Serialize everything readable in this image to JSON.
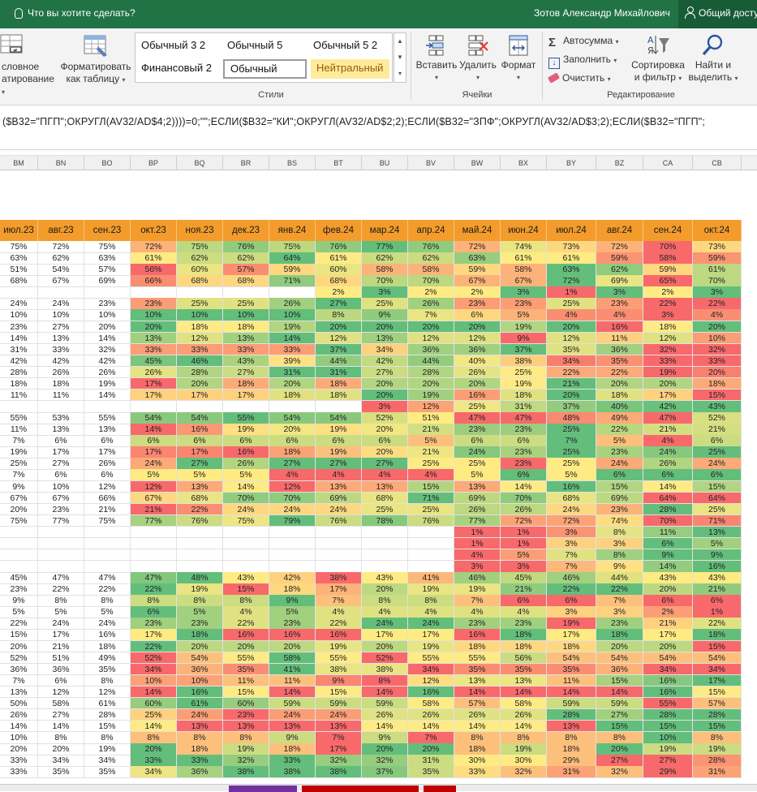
{
  "titlebar": {
    "tell_me": "Что вы хотите сделать?",
    "user_name": "Зотов Александр Михайлович",
    "share_label": "Общий доступ"
  },
  "ribbon": {
    "conditional_formatting": {
      "line1": "словное",
      "line2": "атирование"
    },
    "format_as_table": {
      "line1": "Форматировать",
      "line2": "как таблицу"
    },
    "cell_styles": [
      "Обычный 3 2",
      "Обычный 5",
      "Обычный 5 2",
      "Финансовый 2",
      "Обычный",
      "Нейтральный"
    ],
    "styles_group": "Стили",
    "insert_label": "Вставить",
    "delete_label": "Удалить",
    "format_label": "Формат",
    "cells_group": "Ячейки",
    "autosum_label": "Автосумма",
    "fill_label": "Заполнить",
    "clear_label": "Очистить",
    "sort_filter": {
      "line1": "Сортировка",
      "line2": "и фильтр"
    },
    "find_select": {
      "line1": "Найти и",
      "line2": "выделить"
    },
    "editing_group": "Редактирование",
    "colors": {
      "neutral_bg": "#ffeb9c",
      "neutral_fg": "#9c5700",
      "accent": "#217346"
    }
  },
  "formula_bar": {
    "text": "($B32=\"ПГП\";ОКРУГЛ(AV32/AD$4;2))))=0;\"\";ЕСЛИ($B32=\"КИ\";ОКРУГЛ(AV32/AD$2;2);ЕСЛИ($B32=\"ЗПФ\";ОКРУГЛ(AV32/AD$3;2);ЕСЛИ($B32=\"ПГП\";"
  },
  "columns": [
    "BM",
    "BN",
    "BO",
    "BP",
    "BQ",
    "BR",
    "BS",
    "BT",
    "BU",
    "BV",
    "BW",
    "BX",
    "BY",
    "BZ",
    "CA",
    "CB"
  ],
  "months": [
    "июл.23",
    "авг.23",
    "сен.23",
    "окт.23",
    "ноя.23",
    "дек.23",
    "янв.24",
    "фев.24",
    "мар.24",
    "апр.24",
    "май.24",
    "июн.24",
    "июл.24",
    "авг.24",
    "сен.24",
    "окт.24"
  ],
  "color_scale": {
    "low": "#f8696b",
    "mid": "#ffeb84",
    "high": "#63be7b"
  },
  "header_color": "#f39c2c",
  "rows": [
    [
      "75%",
      "72%",
      "75%",
      "72%",
      "75%",
      "76%",
      "75%",
      "76%",
      "77%",
      "76%",
      "72%",
      "74%",
      "73%",
      "72%",
      "70%",
      "73%"
    ],
    [
      "63%",
      "62%",
      "63%",
      "61%",
      "62%",
      "62%",
      "64%",
      "61%",
      "62%",
      "62%",
      "63%",
      "61%",
      "61%",
      "59%",
      "58%",
      "59%"
    ],
    [
      "51%",
      "54%",
      "57%",
      "56%",
      "60%",
      "57%",
      "59%",
      "60%",
      "58%",
      "58%",
      "59%",
      "58%",
      "63%",
      "62%",
      "59%",
      "61%"
    ],
    [
      "68%",
      "67%",
      "69%",
      "66%",
      "68%",
      "68%",
      "71%",
      "68%",
      "70%",
      "70%",
      "67%",
      "67%",
      "72%",
      "69%",
      "65%",
      "70%"
    ],
    [
      "",
      "",
      "",
      "",
      "",
      "",
      "",
      "2%",
      "3%",
      "2%",
      "2%",
      "3%",
      "1%",
      "3%",
      "2%",
      "3%"
    ],
    [
      "24%",
      "24%",
      "23%",
      "23%",
      "25%",
      "25%",
      "26%",
      "27%",
      "25%",
      "26%",
      "23%",
      "23%",
      "25%",
      "23%",
      "22%",
      "22%"
    ],
    [
      "10%",
      "10%",
      "10%",
      "10%",
      "10%",
      "10%",
      "10%",
      "8%",
      "9%",
      "7%",
      "6%",
      "5%",
      "4%",
      "4%",
      "3%",
      "4%"
    ],
    [
      "23%",
      "27%",
      "20%",
      "20%",
      "18%",
      "18%",
      "19%",
      "20%",
      "20%",
      "20%",
      "20%",
      "19%",
      "20%",
      "16%",
      "18%",
      "20%"
    ],
    [
      "14%",
      "13%",
      "14%",
      "13%",
      "12%",
      "13%",
      "14%",
      "12%",
      "13%",
      "12%",
      "12%",
      "9%",
      "12%",
      "11%",
      "12%",
      "10%"
    ],
    [
      "31%",
      "33%",
      "32%",
      "33%",
      "33%",
      "33%",
      "33%",
      "37%",
      "34%",
      "36%",
      "36%",
      "37%",
      "35%",
      "36%",
      "32%",
      "32%"
    ],
    [
      "42%",
      "42%",
      "42%",
      "45%",
      "46%",
      "43%",
      "39%",
      "44%",
      "42%",
      "44%",
      "40%",
      "38%",
      "34%",
      "35%",
      "33%",
      "33%"
    ],
    [
      "28%",
      "26%",
      "26%",
      "26%",
      "28%",
      "27%",
      "31%",
      "31%",
      "27%",
      "28%",
      "26%",
      "25%",
      "22%",
      "22%",
      "19%",
      "20%"
    ],
    [
      "18%",
      "18%",
      "19%",
      "17%",
      "20%",
      "18%",
      "20%",
      "18%",
      "20%",
      "20%",
      "20%",
      "19%",
      "21%",
      "20%",
      "20%",
      "18%"
    ],
    [
      "11%",
      "11%",
      "14%",
      "17%",
      "17%",
      "17%",
      "18%",
      "18%",
      "20%",
      "19%",
      "16%",
      "18%",
      "20%",
      "18%",
      "17%",
      "15%"
    ],
    [
      "",
      "",
      "",
      "",
      "",
      "",
      "",
      "",
      "3%",
      "12%",
      "25%",
      "31%",
      "37%",
      "40%",
      "42%",
      "43%"
    ],
    [
      "55%",
      "53%",
      "55%",
      "54%",
      "54%",
      "55%",
      "54%",
      "54%",
      "52%",
      "51%",
      "47%",
      "47%",
      "48%",
      "49%",
      "47%",
      "52%"
    ],
    [
      "11%",
      "13%",
      "13%",
      "14%",
      "16%",
      "19%",
      "20%",
      "19%",
      "20%",
      "21%",
      "23%",
      "23%",
      "25%",
      "22%",
      "21%",
      "21%"
    ],
    [
      "7%",
      "6%",
      "6%",
      "6%",
      "6%",
      "6%",
      "6%",
      "6%",
      "6%",
      "5%",
      "6%",
      "6%",
      "7%",
      "5%",
      "4%",
      "6%"
    ],
    [
      "19%",
      "17%",
      "17%",
      "17%",
      "17%",
      "16%",
      "18%",
      "19%",
      "20%",
      "21%",
      "24%",
      "23%",
      "25%",
      "23%",
      "24%",
      "25%"
    ],
    [
      "25%",
      "27%",
      "26%",
      "24%",
      "27%",
      "26%",
      "27%",
      "27%",
      "27%",
      "25%",
      "25%",
      "23%",
      "25%",
      "24%",
      "26%",
      "24%"
    ],
    [
      "7%",
      "6%",
      "6%",
      "5%",
      "5%",
      "5%",
      "4%",
      "4%",
      "4%",
      "4%",
      "5%",
      "6%",
      "5%",
      "6%",
      "6%",
      "6%"
    ],
    [
      "9%",
      "10%",
      "12%",
      "12%",
      "13%",
      "14%",
      "12%",
      "13%",
      "13%",
      "15%",
      "13%",
      "14%",
      "16%",
      "15%",
      "14%",
      "15%"
    ],
    [
      "67%",
      "67%",
      "66%",
      "67%",
      "68%",
      "70%",
      "70%",
      "69%",
      "68%",
      "71%",
      "69%",
      "70%",
      "68%",
      "69%",
      "64%",
      "64%"
    ],
    [
      "20%",
      "23%",
      "21%",
      "21%",
      "22%",
      "24%",
      "24%",
      "24%",
      "25%",
      "25%",
      "26%",
      "26%",
      "24%",
      "23%",
      "28%",
      "25%"
    ],
    [
      "75%",
      "77%",
      "75%",
      "77%",
      "76%",
      "75%",
      "79%",
      "76%",
      "78%",
      "76%",
      "77%",
      "72%",
      "72%",
      "74%",
      "70%",
      "71%"
    ],
    [
      "",
      "",
      "",
      "",
      "",
      "",
      "",
      "",
      "",
      "",
      "1%",
      "1%",
      "3%",
      "8%",
      "11%",
      "13%"
    ],
    [
      "",
      "",
      "",
      "",
      "",
      "",
      "",
      "",
      "",
      "",
      "1%",
      "1%",
      "3%",
      "3%",
      "6%",
      "5%"
    ],
    [
      "",
      "",
      "",
      "",
      "",
      "",
      "",
      "",
      "",
      "",
      "4%",
      "5%",
      "7%",
      "8%",
      "9%",
      "9%"
    ],
    [
      "",
      "",
      "",
      "",
      "",
      "",
      "",
      "",
      "",
      "",
      "3%",
      "3%",
      "7%",
      "9%",
      "14%",
      "16%"
    ],
    [
      "45%",
      "47%",
      "47%",
      "47%",
      "48%",
      "43%",
      "42%",
      "38%",
      "43%",
      "41%",
      "46%",
      "45%",
      "46%",
      "44%",
      "43%",
      "43%"
    ],
    [
      "23%",
      "22%",
      "22%",
      "22%",
      "19%",
      "15%",
      "18%",
      "17%",
      "20%",
      "19%",
      "19%",
      "21%",
      "22%",
      "22%",
      "20%",
      "21%"
    ],
    [
      "9%",
      "8%",
      "8%",
      "8%",
      "8%",
      "8%",
      "9%",
      "7%",
      "8%",
      "8%",
      "7%",
      "6%",
      "6%",
      "7%",
      "6%",
      "6%"
    ],
    [
      "5%",
      "5%",
      "5%",
      "6%",
      "5%",
      "4%",
      "5%",
      "4%",
      "4%",
      "4%",
      "4%",
      "4%",
      "3%",
      "3%",
      "2%",
      "1%"
    ],
    [
      "22%",
      "24%",
      "24%",
      "23%",
      "23%",
      "22%",
      "23%",
      "22%",
      "24%",
      "24%",
      "23%",
      "23%",
      "19%",
      "23%",
      "21%",
      "22%"
    ],
    [
      "15%",
      "17%",
      "16%",
      "17%",
      "18%",
      "16%",
      "16%",
      "16%",
      "17%",
      "17%",
      "16%",
      "18%",
      "17%",
      "18%",
      "17%",
      "18%"
    ],
    [
      "20%",
      "21%",
      "18%",
      "22%",
      "20%",
      "20%",
      "20%",
      "19%",
      "20%",
      "19%",
      "18%",
      "18%",
      "18%",
      "20%",
      "20%",
      "15%"
    ],
    [
      "52%",
      "51%",
      "49%",
      "52%",
      "54%",
      "55%",
      "58%",
      "55%",
      "52%",
      "55%",
      "55%",
      "56%",
      "54%",
      "54%",
      "54%",
      "54%"
    ],
    [
      "36%",
      "36%",
      "35%",
      "34%",
      "36%",
      "35%",
      "41%",
      "38%",
      "38%",
      "34%",
      "35%",
      "35%",
      "35%",
      "36%",
      "34%",
      "34%"
    ],
    [
      "7%",
      "6%",
      "8%",
      "10%",
      "10%",
      "11%",
      "11%",
      "9%",
      "8%",
      "12%",
      "13%",
      "13%",
      "11%",
      "15%",
      "16%",
      "17%"
    ],
    [
      "13%",
      "12%",
      "12%",
      "14%",
      "16%",
      "15%",
      "14%",
      "15%",
      "14%",
      "16%",
      "14%",
      "14%",
      "14%",
      "14%",
      "16%",
      "15%"
    ],
    [
      "50%",
      "58%",
      "61%",
      "60%",
      "61%",
      "60%",
      "59%",
      "59%",
      "59%",
      "58%",
      "57%",
      "58%",
      "59%",
      "59%",
      "55%",
      "57%"
    ],
    [
      "26%",
      "27%",
      "28%",
      "25%",
      "24%",
      "23%",
      "24%",
      "24%",
      "26%",
      "26%",
      "26%",
      "26%",
      "28%",
      "27%",
      "28%",
      "28%"
    ],
    [
      "14%",
      "14%",
      "15%",
      "14%",
      "13%",
      "13%",
      "13%",
      "13%",
      "14%",
      "14%",
      "14%",
      "14%",
      "13%",
      "15%",
      "15%",
      "15%"
    ],
    [
      "10%",
      "8%",
      "8%",
      "8%",
      "8%",
      "8%",
      "9%",
      "7%",
      "9%",
      "7%",
      "8%",
      "8%",
      "8%",
      "8%",
      "10%",
      "8%"
    ],
    [
      "20%",
      "20%",
      "19%",
      "20%",
      "18%",
      "19%",
      "18%",
      "17%",
      "20%",
      "20%",
      "18%",
      "19%",
      "18%",
      "20%",
      "19%",
      "19%"
    ],
    [
      "33%",
      "34%",
      "34%",
      "33%",
      "33%",
      "32%",
      "33%",
      "32%",
      "32%",
      "31%",
      "30%",
      "30%",
      "29%",
      "27%",
      "27%",
      "28%"
    ],
    [
      "33%",
      "35%",
      "35%",
      "34%",
      "36%",
      "38%",
      "38%",
      "38%",
      "37%",
      "35%",
      "33%",
      "32%",
      "31%",
      "32%",
      "29%",
      "31%"
    ]
  ]
}
